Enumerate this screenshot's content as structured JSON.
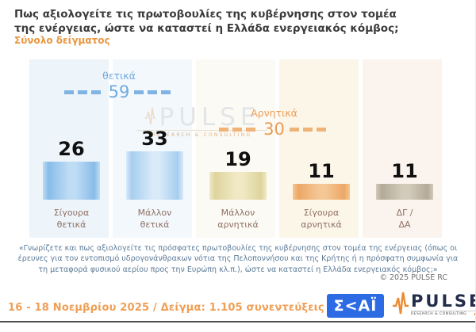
{
  "header": {
    "title_line1": "Πως αξιολογείτε τις πρωτοβουλίες της κυβέρνησης στον τομέα",
    "title_line2": "της ενέργειας, ώστε να καταστεί η Ελλάδα ενεργειακός κόμβος;",
    "subtitle": "Σύνολο δείγματος"
  },
  "chart_data": {
    "type": "bar",
    "title": "Πως αξιολογείτε τις πρωτοβουλίες της κυβέρνησης στον τομέα της ενέργειας, ώστε να καταστεί η Ελλάδα ενεργειακός κόμβος;",
    "subtitle": "Σύνολο δείγματος",
    "unit": "percent",
    "categories": [
      "Σίγουρα θετικά",
      "Μάλλον θετικά",
      "Μάλλον αρνητικά",
      "Σίγουρα αρνητικά",
      "ΔΓ / ΔΑ"
    ],
    "categories_lines": [
      [
        "Σίγουρα",
        "θετικά"
      ],
      [
        "Μάλλον",
        "θετικά"
      ],
      [
        "Μάλλον",
        "αρνητικά"
      ],
      [
        "Σίγουρα",
        "αρνητικά"
      ],
      [
        "ΔΓ /",
        "ΔΑ"
      ]
    ],
    "values": [
      26,
      33,
      19,
      11,
      11
    ],
    "ylim": [
      0,
      40
    ],
    "grid": false,
    "legend": "none",
    "groups": [
      {
        "label": "θετικά",
        "value": 59,
        "color": "#71abde",
        "bars": [
          "Σίγουρα θετικά",
          "Μάλλον θετικά"
        ]
      },
      {
        "label": "Αρνητικά",
        "value": 30,
        "color": "#ea9d55",
        "bars": [
          "Μάλλον αρνητικά",
          "Σίγουρα αρνητικά"
        ]
      }
    ],
    "bar_colors": [
      {
        "light": "#bfdcf5",
        "dark": "#88bce8"
      },
      {
        "light": "#d9eaf9",
        "dark": "#a7ceef"
      },
      {
        "light": "#f0e9c4",
        "dark": "#ded49e"
      },
      {
        "light": "#f5c795",
        "dark": "#eca765"
      },
      {
        "light": "#d2caba",
        "dark": "#b3aa99"
      }
    ],
    "column_tints": [
      "#edf4fa",
      "#f3f8fc",
      "#fcfaf4",
      "#fcf6e9",
      "#fbf3ee"
    ]
  },
  "watermark": {
    "name": "PULSE",
    "tagline": "RESEARCH & CONSULTING"
  },
  "footnote": {
    "text": "«Γνωρίζετε και πως αξιολογείτε τις πρόσφατες πρωτοβουλίες της κυβέρνησης στον τομέα της ενέργειας (όπως οι έρευνες για τον εντοπισμό υδρογονάνθρακων νότια της Πελοποννήσου και της Κρήτης ή η πρόσφατη συμφωνία για τη μεταφορά φυσικού αερίου προς την Ευρώπη κλ.π.), ώστε να καταστεί η Ελλάδα ενεργειακός κόμβος;»",
    "copyright": "© 2025 PULSE RC"
  },
  "footer": {
    "fieldwork": "16 - 18 Νοεμβρίου 2025  /  Δείγμα:  1.105 συνεντεύξεις",
    "skai_text": "Σ<ΑΪ",
    "pulse_name": "PULSE",
    "pulse_tagline": "RESEARCH & CONSULTING"
  },
  "colors": {
    "title_text": "#3b3b3b",
    "subtitle_orange": "#e9963f",
    "positive_accent": "#71abde",
    "negative_accent": "#ea9d55",
    "category_label": "#8d7064",
    "footnote_text": "#5c7a97",
    "copyright_text": "#6e6e6e",
    "fieldwork_orange": "#ef9e54",
    "skai_blue": "#2d6be4",
    "pulse_navy": "#232d49",
    "pulse_orange": "#ec8a2d",
    "bottom_line": "#4f4f4f"
  }
}
